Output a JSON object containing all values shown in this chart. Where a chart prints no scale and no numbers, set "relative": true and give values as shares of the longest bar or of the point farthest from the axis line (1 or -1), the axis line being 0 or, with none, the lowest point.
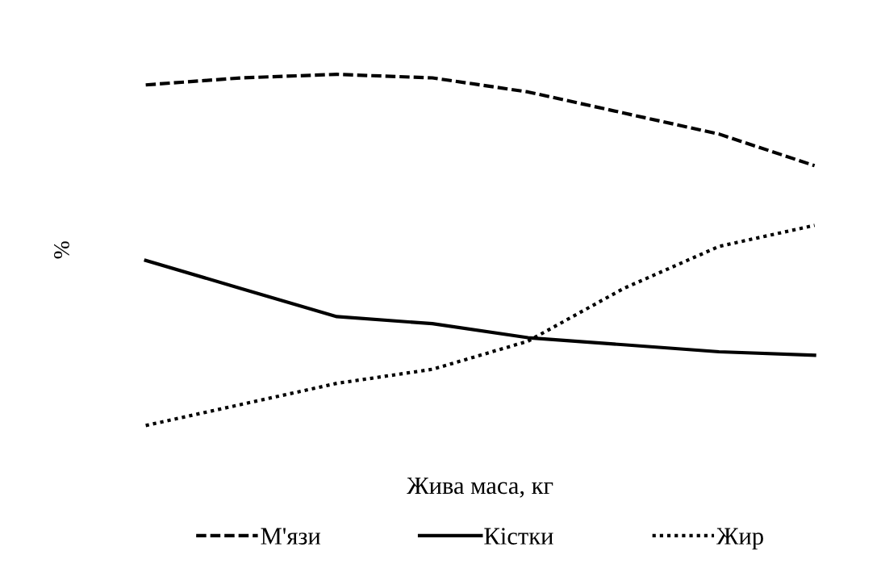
{
  "chart_data": {
    "type": "line",
    "relative": true,
    "xlabel": "Жива маса, кг",
    "ylabel": "%",
    "categories": [
      null,
      null,
      null,
      null,
      null,
      null,
      null,
      null
    ],
    "series": [
      {
        "name": "М'язи",
        "color": "#000000",
        "line_style": "dashed",
        "values": [
          0.97,
          0.99,
          1.0,
          0.99,
          0.95,
          0.89,
          0.83,
          0.74
        ]
      },
      {
        "name": "Кістки",
        "color": "#000000",
        "line_style": "solid",
        "values": [
          0.47,
          0.39,
          0.31,
          0.29,
          0.25,
          0.23,
          0.21,
          0.2
        ]
      },
      {
        "name": "Жир",
        "color": "#000000",
        "line_style": "dotted",
        "values": [
          0.0,
          0.06,
          0.12,
          0.16,
          0.24,
          0.39,
          0.51,
          0.57
        ]
      }
    ],
    "legend": "bottom",
    "grid": false,
    "marker": "none",
    "tick_labels": false
  }
}
